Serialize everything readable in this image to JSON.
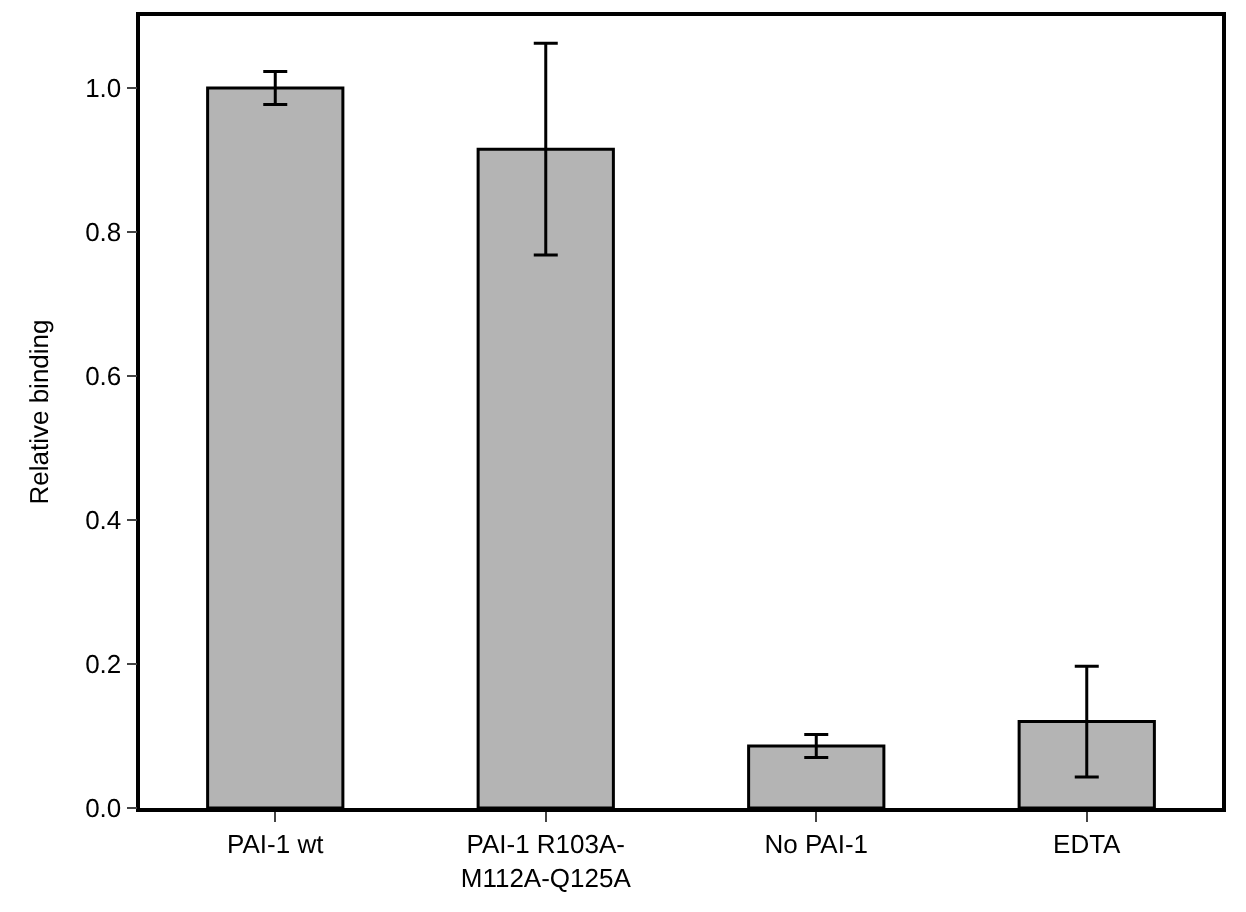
{
  "chart_data": {
    "type": "bar",
    "ylabel": "Relative binding",
    "categories": [
      "PAI-1 wt",
      "PAI-1 R103A-\nM112A-Q125A",
      "No PAI-1",
      "EDTA"
    ],
    "values": [
      1.0,
      0.915,
      0.086,
      0.12
    ],
    "errors": [
      0.023,
      0.147,
      0.016,
      0.077
    ],
    "color": "#b4b4b4",
    "ylim": [
      0,
      1.1
    ],
    "yticks": [
      {
        "value": 0,
        "label": "0.0"
      },
      0.2,
      0.4,
      0.6,
      0.8,
      {
        "value": 1,
        "label": "1.0"
      }
    ]
  }
}
